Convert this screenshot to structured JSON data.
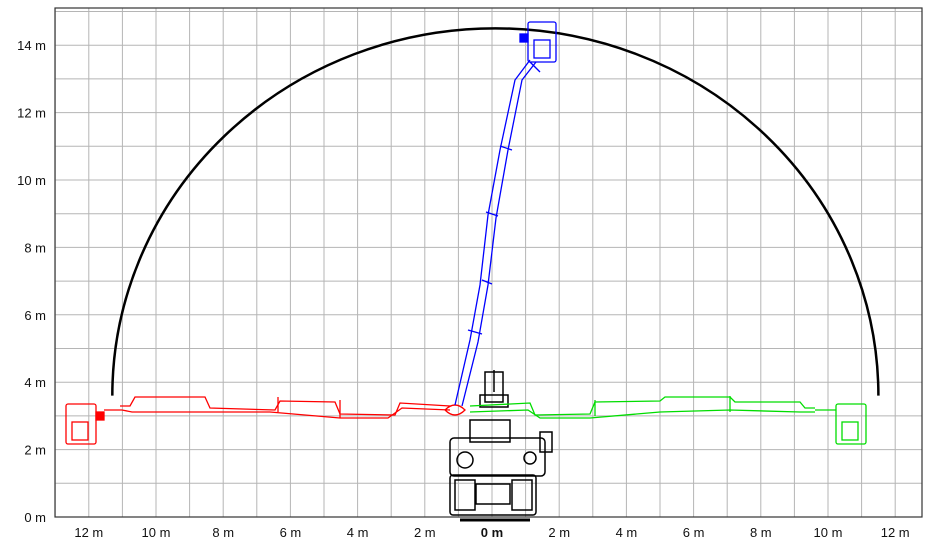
{
  "diagram": {
    "x_axis": {
      "ticks": [
        {
          "value": -12,
          "label": "12 m"
        },
        {
          "value": -10,
          "label": "10 m"
        },
        {
          "value": -8,
          "label": "8 m"
        },
        {
          "value": -6,
          "label": "6 m"
        },
        {
          "value": -4,
          "label": "4 m"
        },
        {
          "value": -2,
          "label": "2 m"
        },
        {
          "value": 0,
          "label": "0 m",
          "bold": true
        },
        {
          "value": 2,
          "label": "2 m"
        },
        {
          "value": 4,
          "label": "4 m"
        },
        {
          "value": 6,
          "label": "6 m"
        },
        {
          "value": 8,
          "label": "8 m"
        },
        {
          "value": 10,
          "label": "10 m"
        },
        {
          "value": 12,
          "label": "12 m"
        }
      ]
    },
    "y_axis": {
      "ticks": [
        {
          "value": 0,
          "label": "0 m"
        },
        {
          "value": 2,
          "label": "2 m"
        },
        {
          "value": 4,
          "label": "4 m"
        },
        {
          "value": 6,
          "label": "6 m"
        },
        {
          "value": 8,
          "label": "8 m"
        },
        {
          "value": 10,
          "label": "10 m"
        },
        {
          "value": 12,
          "label": "12 m"
        },
        {
          "value": 14,
          "label": "14 m"
        }
      ]
    },
    "reach_envelope": {
      "max_height_m": 14.5,
      "left_extent_m": -11.3,
      "right_extent_m": 11.5,
      "color": "#000000"
    },
    "boom_positions": [
      {
        "name": "left",
        "color": "#ff0000",
        "tip_x_m": -11.8,
        "tip_y_m": 3.0
      },
      {
        "name": "vertical",
        "color": "#0000ff",
        "tip_x_m": 2.2,
        "tip_y_m": 14.5
      },
      {
        "name": "right",
        "color": "#00cc00",
        "tip_x_m": 11.3,
        "tip_y_m": 3.0
      }
    ],
    "machine_color": "#000000"
  }
}
